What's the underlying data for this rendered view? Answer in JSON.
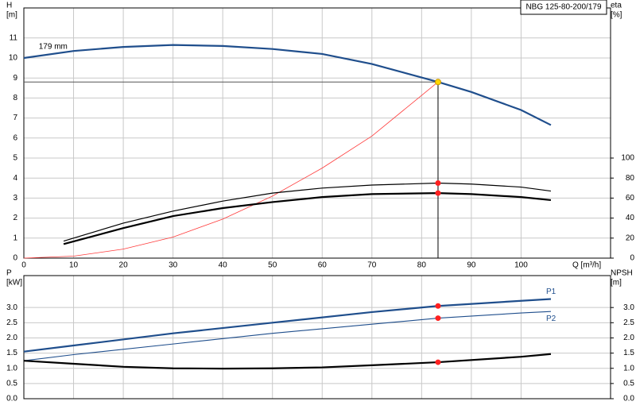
{
  "chart_data": [
    {
      "type": "line",
      "model_label": "NBG 125-80-200/179",
      "ylabel": "H",
      "yunit": "[m]",
      "y2label": "eta",
      "y2unit": "[%]",
      "xlabel": "Q [m³/h]",
      "curve_label": "179 mm",
      "xlim": [
        0,
        118
      ],
      "xticks": [
        0,
        10,
        20,
        30,
        40,
        50,
        60,
        70,
        80,
        90,
        100
      ],
      "ylim": [
        0,
        12.5
      ],
      "yticks": [
        0,
        1,
        2,
        3,
        4,
        5,
        6,
        7,
        8,
        9,
        10,
        11
      ],
      "y2lim": [
        0,
        250
      ],
      "y2ticks": [
        0,
        20,
        40,
        60,
        80,
        100
      ],
      "grid": true,
      "series": [
        {
          "color": "#1f4e8c",
          "line_width": 2.2,
          "x": [
            0,
            10,
            20,
            30,
            40,
            50,
            60,
            70,
            83.3,
            90,
            100,
            106
          ],
          "values": [
            10.0,
            10.35,
            10.55,
            10.65,
            10.6,
            10.45,
            10.2,
            9.7,
            8.8,
            8.3,
            7.4,
            6.65
          ]
        },
        {
          "color": "#ff3b3b",
          "line_width": 0.8,
          "x": [
            0,
            10,
            20,
            30,
            40,
            50,
            60,
            70,
            83.3
          ],
          "values": [
            0,
            0.1,
            0.45,
            1.05,
            1.95,
            3.1,
            4.5,
            6.1,
            8.8
          ]
        },
        {
          "color": "#000000",
          "line_width": 1.2,
          "axis": "y2",
          "x": [
            8,
            20,
            30,
            40,
            50,
            60,
            70,
            83.3,
            90,
            100,
            106
          ],
          "values": [
            17,
            35,
            47,
            57,
            65,
            70,
            73,
            75,
            74,
            71,
            67
          ]
        },
        {
          "color": "#000000",
          "line_width": 2.2,
          "axis": "y2",
          "x": [
            8,
            20,
            30,
            40,
            50,
            60,
            70,
            83.3,
            90,
            100,
            106
          ],
          "values": [
            14,
            30,
            42,
            50,
            56,
            61,
            64,
            65,
            64,
            61,
            58
          ]
        }
      ],
      "operating_points": [
        {
          "x": 83.3,
          "y": 8.8,
          "color": "#ffd700",
          "guides": true
        },
        {
          "x": 83.3,
          "y": 75,
          "axis": "y2",
          "color": "#ff2020"
        },
        {
          "x": 83.3,
          "y": 65,
          "axis": "y2",
          "color": "#ff2020"
        }
      ]
    },
    {
      "type": "line",
      "ylabel": "P",
      "yunit": "[kW]",
      "y2label": "NPSH",
      "y2unit": "[m]",
      "xlim": [
        0,
        118
      ],
      "xticks": [
        0,
        10,
        20,
        30,
        40,
        50,
        60,
        70,
        80,
        90,
        100
      ],
      "ylim": [
        0,
        4.05
      ],
      "yticks": [
        {
          "value": 0,
          "label": "0.0"
        },
        0.5,
        {
          "value": 1,
          "label": "1.0"
        },
        1.5,
        {
          "value": 2,
          "label": "2.0"
        },
        2.5,
        {
          "value": 3,
          "label": "3.0"
        }
      ],
      "y2lim": [
        0,
        4.05
      ],
      "y2ticks": [
        {
          "value": 0,
          "label": "0.0"
        },
        0.5,
        {
          "value": 1,
          "label": "1.0"
        },
        1.5,
        {
          "value": 2,
          "label": "2.0"
        },
        2.5,
        {
          "value": 3,
          "label": "3.0"
        }
      ],
      "grid": true,
      "series": [
        {
          "name": "P1",
          "color": "#1f4e8c",
          "line_width": 2.2,
          "x": [
            0,
            10,
            30,
            50,
            70,
            83.3,
            100,
            106
          ],
          "values": [
            1.55,
            1.75,
            2.15,
            2.5,
            2.85,
            3.05,
            3.22,
            3.28
          ]
        },
        {
          "name": "P2",
          "color": "#1f4e8c",
          "line_width": 1.1,
          "x": [
            0,
            10,
            30,
            50,
            70,
            83.3,
            100,
            106
          ],
          "values": [
            1.25,
            1.45,
            1.8,
            2.15,
            2.45,
            2.65,
            2.82,
            2.87
          ]
        },
        {
          "color": "#000000",
          "line_width": 2.2,
          "axis": "y2",
          "x": [
            0,
            10,
            20,
            30,
            40,
            50,
            60,
            70,
            83.3,
            100,
            106
          ],
          "values": [
            1.25,
            1.15,
            1.05,
            1.0,
            0.99,
            1.0,
            1.03,
            1.1,
            1.2,
            1.38,
            1.47
          ]
        }
      ],
      "operating_points": [
        {
          "x": 83.3,
          "y": 3.05,
          "color": "#ff2020"
        },
        {
          "x": 83.3,
          "y": 2.65,
          "color": "#ff2020"
        },
        {
          "x": 83.3,
          "y": 1.2,
          "axis": "y2",
          "color": "#ff2020"
        }
      ]
    }
  ]
}
